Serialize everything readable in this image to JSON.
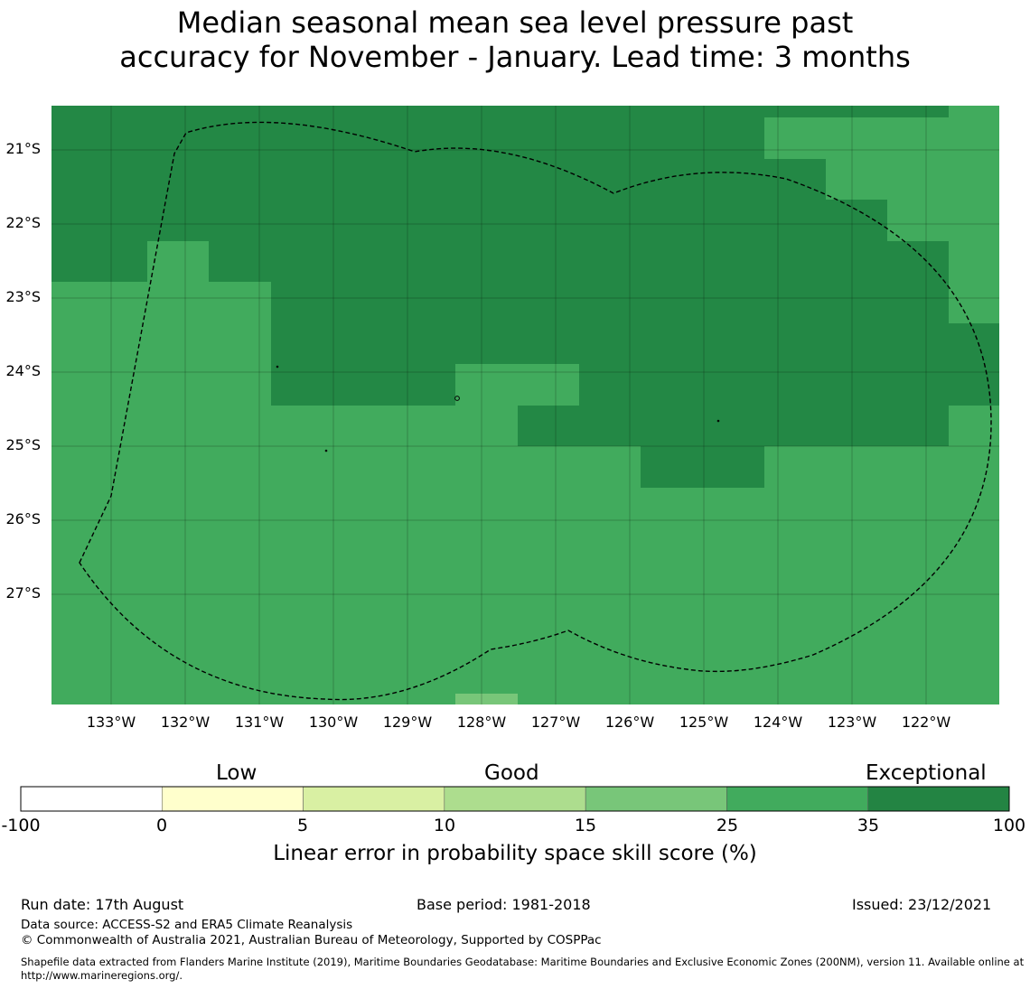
{
  "title": {
    "line1": "Median seasonal mean sea level pressure past",
    "line2": "accuracy for November - January. Lead time: 3 months"
  },
  "map": {
    "lat_labels": [
      "21°S",
      "22°S",
      "23°S",
      "24°S",
      "25°S",
      "26°S",
      "27°S"
    ],
    "lon_labels": [
      "133°W",
      "132°W",
      "131°W",
      "130°W",
      "129°W",
      "128°W",
      "127°W",
      "126°W",
      "125°W",
      "124°W",
      "123°W",
      "122°W"
    ],
    "colors": {
      "exceptional_dark": "#238845",
      "exceptional": "#41ab5d",
      "good_high": "#78c679",
      "boundary": "#000000"
    },
    "boundary_style": "dashed"
  },
  "colorbar": {
    "categories": [
      "Low",
      "Good",
      "Exceptional"
    ],
    "ticks": [
      "-100",
      "0",
      "5",
      "10",
      "15",
      "25",
      "35",
      "100"
    ],
    "colors": [
      "#ffffff",
      "#ffffcc",
      "#d9f0a3",
      "#addd8e",
      "#78c679",
      "#41ab5d",
      "#238443"
    ],
    "label": "Linear error in probability space skill score (%)"
  },
  "footer": {
    "run_date": "Run date: 17th August",
    "base_period": "Base period: 1981-2018",
    "issued": "Issued: 23/12/2021",
    "data_source": "Data source: ACCESS-S2 and ERA5 Climate Reanalysis",
    "copyright": "© Commonwealth of Australia 2021, Australian Bureau of Meteorology, Supported by COSPPac",
    "shapefile": "Shapefile data extracted from Flanders Marine Institute (2019), Maritime Boundaries Geodatabase: Maritime Boundaries and Exclusive Economic Zones (200NM), version 11. Available online at http://www.marineregions.org/."
  }
}
